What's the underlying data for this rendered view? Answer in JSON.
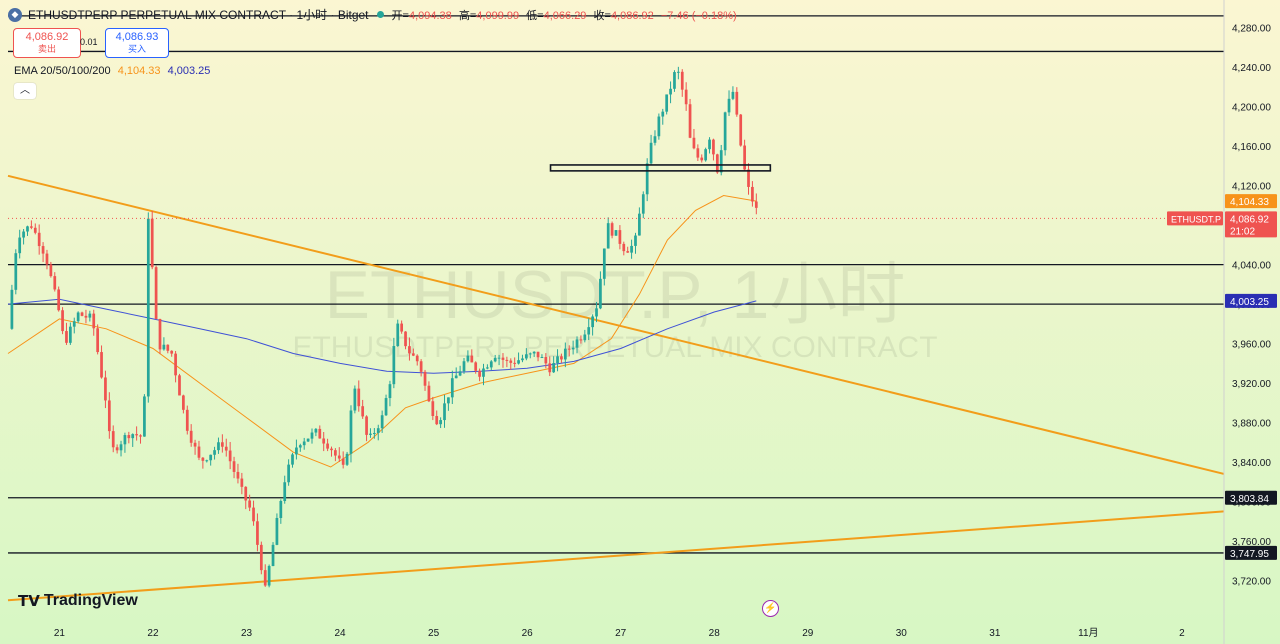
{
  "header": {
    "symbol": "ETHUSDTPERP PERPETUAL MIX CONTRACT · 1小时 · Bitget",
    "open_label": "开=",
    "open": "4,094.38",
    "high_label": "高=",
    "high": "4,099.99",
    "low_label": "低=",
    "low": "4,066.29",
    "close_label": "收=",
    "close": "4,086.92",
    "change": "−7.46 (−0.18%)"
  },
  "trade": {
    "sell_price": "4,086.92",
    "sell_label": "卖出",
    "spread": "0.01",
    "buy_price": "4,086.93",
    "buy_label": "买入"
  },
  "indicator": {
    "label": "EMA 20/50/100/200",
    "ema_a": "4,104.33",
    "ema_b": "4,003.25"
  },
  "watermark": {
    "main": "ETHUSDT.P, 1小时",
    "sub": "ETHUSDTPERP PERPETUAL MIX CONTRACT"
  },
  "brand": "TradingView",
  "colors": {
    "up": "#26a69a",
    "down": "#ef5350",
    "ema_orange": "#f7931a",
    "ema_blue": "#3f51d6",
    "trendline": "#f29d1a",
    "level": "#131722",
    "bg_top": "#fbf6d2",
    "bg_bottom": "#d7f7c4"
  },
  "chart_data": {
    "type": "candlestick",
    "timeframe": "1h",
    "ylim": [
      3680,
      4300
    ],
    "y_ticks": [
      3720,
      3760,
      3800,
      3840,
      3880,
      3920,
      3960,
      4000,
      4040,
      4080,
      4120,
      4160,
      4200,
      4240,
      4280
    ],
    "y_tick_labels": [
      "3,720.00",
      "3,760.00",
      "3,800.00",
      "3,840.00",
      "3,880.00",
      "3,920.00",
      "3,960.00",
      "4,000.00",
      "4,040.00",
      "4,080.00",
      "4,120.00",
      "4,160.00",
      "4,200.00",
      "4,240.00",
      "4,280.00"
    ],
    "x_labels": [
      "21",
      "22",
      "23",
      "24",
      "25",
      "26",
      "27",
      "28",
      "29",
      "30",
      "31",
      "11月",
      "2"
    ],
    "x_label_days": [
      21,
      22,
      23,
      24,
      25,
      26,
      27,
      28,
      29,
      30,
      31,
      32,
      33
    ],
    "xlim_days": [
      20.45,
      33.45
    ],
    "last_candle_day": 28.45,
    "close_path": [
      [
        20.45,
        3975
      ],
      [
        20.55,
        4070
      ],
      [
        20.7,
        4080
      ],
      [
        20.85,
        4050
      ],
      [
        21.0,
        3990
      ],
      [
        21.05,
        3960
      ],
      [
        21.2,
        3990
      ],
      [
        21.35,
        3985
      ],
      [
        21.5,
        3900
      ],
      [
        21.55,
        3850
      ],
      [
        21.75,
        3870
      ],
      [
        21.9,
        3865
      ],
      [
        21.95,
        4090
      ],
      [
        22.05,
        3960
      ],
      [
        22.2,
        3950
      ],
      [
        22.35,
        3880
      ],
      [
        22.5,
        3840
      ],
      [
        22.75,
        3860
      ],
      [
        22.95,
        3810
      ],
      [
        23.05,
        3790
      ],
      [
        23.15,
        3740
      ],
      [
        23.2,
        3710
      ],
      [
        23.4,
        3820
      ],
      [
        23.55,
        3860
      ],
      [
        23.75,
        3870
      ],
      [
        23.9,
        3855
      ],
      [
        24.05,
        3830
      ],
      [
        24.15,
        3920
      ],
      [
        24.3,
        3860
      ],
      [
        24.45,
        3885
      ],
      [
        24.55,
        3930
      ],
      [
        24.6,
        3980
      ],
      [
        24.75,
        3950
      ],
      [
        24.85,
        3940
      ],
      [
        24.95,
        3900
      ],
      [
        25.05,
        3880
      ],
      [
        25.2,
        3920
      ],
      [
        25.35,
        3945
      ],
      [
        25.5,
        3930
      ],
      [
        25.65,
        3950
      ],
      [
        25.8,
        3940
      ],
      [
        25.95,
        3945
      ],
      [
        26.1,
        3950
      ],
      [
        26.25,
        3935
      ],
      [
        26.45,
        3955
      ],
      [
        26.6,
        3970
      ],
      [
        26.75,
        4000
      ],
      [
        26.85,
        4080
      ],
      [
        26.95,
        4070
      ],
      [
        27.05,
        4055
      ],
      [
        27.15,
        4060
      ],
      [
        27.3,
        4150
      ],
      [
        27.4,
        4185
      ],
      [
        27.5,
        4210
      ],
      [
        27.6,
        4240
      ],
      [
        27.7,
        4200
      ],
      [
        27.75,
        4160
      ],
      [
        27.85,
        4145
      ],
      [
        27.95,
        4170
      ],
      [
        28.05,
        4130
      ],
      [
        28.1,
        4190
      ],
      [
        28.2,
        4215
      ],
      [
        28.3,
        4150
      ],
      [
        28.35,
        4120
      ],
      [
        28.45,
        4095
      ],
      [
        28.55,
        4086.92
      ]
    ],
    "series": [
      {
        "name": "ETHUSDT.P",
        "last": 4086.92,
        "last_label": "4,086.92",
        "countdown": "21:02"
      },
      {
        "name": "EMA",
        "last": 4104.33,
        "last_label": "4,104.33",
        "points": [
          [
            20.45,
            3950
          ],
          [
            21.0,
            3985
          ],
          [
            21.5,
            3975
          ],
          [
            22.0,
            3955
          ],
          [
            22.5,
            3920
          ],
          [
            23.0,
            3885
          ],
          [
            23.5,
            3850
          ],
          [
            23.9,
            3835
          ],
          [
            24.3,
            3860
          ],
          [
            24.7,
            3895
          ],
          [
            25.0,
            3905
          ],
          [
            25.5,
            3920
          ],
          [
            26.0,
            3930
          ],
          [
            26.5,
            3940
          ],
          [
            26.9,
            3965
          ],
          [
            27.2,
            4010
          ],
          [
            27.5,
            4065
          ],
          [
            27.8,
            4095
          ],
          [
            28.1,
            4110
          ],
          [
            28.45,
            4104.33
          ]
        ]
      },
      {
        "name": "EMA",
        "last": 4003.25,
        "last_label": "4,003.25",
        "points": [
          [
            20.45,
            4000
          ],
          [
            21.0,
            4005
          ],
          [
            21.5,
            3995
          ],
          [
            22.0,
            3985
          ],
          [
            22.5,
            3975
          ],
          [
            23.0,
            3965
          ],
          [
            23.5,
            3950
          ],
          [
            24.0,
            3940
          ],
          [
            24.5,
            3932
          ],
          [
            25.0,
            3930
          ],
          [
            25.5,
            3932
          ],
          [
            26.0,
            3935
          ],
          [
            26.5,
            3942
          ],
          [
            27.0,
            3955
          ],
          [
            27.5,
            3975
          ],
          [
            28.0,
            3992
          ],
          [
            28.45,
            4003.25
          ]
        ]
      }
    ],
    "horizontal_levels": [
      {
        "value": 4292,
        "label": ""
      },
      {
        "value": 4256,
        "label": ""
      },
      {
        "value": 4040,
        "label": ""
      },
      {
        "value": 4000,
        "label": ""
      },
      {
        "value": 3803.84,
        "label": "3,803.84"
      },
      {
        "value": 3747.95,
        "label": "3,747.95"
      }
    ],
    "trendlines": [
      {
        "from": [
          20.45,
          4130
        ],
        "to": [
          33.45,
          3828
        ]
      },
      {
        "from": [
          20.45,
          3700
        ],
        "to": [
          33.45,
          3790
        ]
      }
    ],
    "rectangle": {
      "day_from": 26.25,
      "day_to": 28.6,
      "y_from": 4135,
      "y_to": 4141
    },
    "last_price_line": 4086.92
  }
}
